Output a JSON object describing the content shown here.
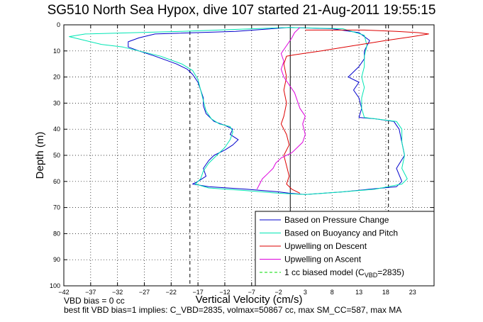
{
  "chart_data": {
    "type": "line",
    "title": "SG510 North Sea Hypox, dive 107 started 21-Aug-2011 19:55:15",
    "xlabel": "Vertical Velocity (cm/s)",
    "ylabel": "Depth (m)",
    "xlim": [
      -42,
      27
    ],
    "ylim": [
      100,
      0
    ],
    "y_reversed": true,
    "grid": true,
    "x_ticks": [
      -42,
      -37,
      -32,
      -27,
      -22,
      -17,
      -12,
      -7,
      -2,
      3,
      8,
      13,
      18,
      23
    ],
    "y_ticks": [
      0,
      10,
      20,
      30,
      40,
      50,
      60,
      70,
      80,
      90,
      100
    ],
    "vertical_lines": [
      {
        "x": -18.5,
        "style": "dashed",
        "color": "#000000"
      },
      {
        "x": 0.2,
        "style": "solid",
        "color": "#000000"
      },
      {
        "x": 18.5,
        "style": "dashed",
        "color": "#000000"
      }
    ],
    "legend_position": "bottom-right",
    "series": [
      {
        "name": "Based on Pressure Change",
        "color": "#0000cc",
        "style": "solid",
        "points": [
          [
            0,
            1
          ],
          [
            -10,
            2.5
          ],
          [
            -25,
            3.5
          ],
          [
            -28,
            5
          ],
          [
            -30,
            6.5
          ],
          [
            -30,
            8.5
          ],
          [
            -28,
            10
          ],
          [
            -25,
            12
          ],
          [
            -21,
            15
          ],
          [
            -19,
            17
          ],
          [
            -18,
            19
          ],
          [
            -17,
            22
          ],
          [
            -16.5,
            25
          ],
          [
            -16,
            28
          ],
          [
            -16,
            31
          ],
          [
            -15.5,
            34
          ],
          [
            -14,
            37
          ],
          [
            -12,
            38.5
          ],
          [
            -10.5,
            40
          ],
          [
            -11,
            42
          ],
          [
            -9.5,
            44
          ],
          [
            -10.5,
            46
          ],
          [
            -12,
            48
          ],
          [
            -14,
            50
          ],
          [
            -15,
            52
          ],
          [
            -16,
            55
          ],
          [
            -15.5,
            58
          ],
          [
            -17,
            60
          ],
          [
            -18,
            61
          ],
          [
            -15,
            62
          ],
          [
            -8,
            63
          ],
          [
            -2,
            64
          ],
          [
            0,
            64.5
          ],
          [
            3,
            65
          ],
          [
            10,
            64
          ],
          [
            15,
            63
          ],
          [
            20,
            62
          ],
          [
            21,
            60
          ],
          [
            20,
            55
          ],
          [
            21.5,
            50
          ],
          [
            21,
            45
          ],
          [
            20.5,
            40
          ],
          [
            19.5,
            37
          ],
          [
            16,
            36
          ],
          [
            13,
            35.5
          ],
          [
            13.5,
            32
          ],
          [
            13,
            28
          ],
          [
            12,
            25
          ],
          [
            13,
            22
          ],
          [
            11,
            20
          ],
          [
            13,
            16
          ],
          [
            14,
            13
          ],
          [
            14,
            10
          ],
          [
            15,
            6
          ],
          [
            13,
            3
          ],
          [
            8,
            1.5
          ],
          [
            0,
            1
          ]
        ]
      },
      {
        "name": "Based on Buoyancy and Pitch",
        "color": "#00e6b4",
        "style": "solid",
        "points": [
          [
            0,
            1
          ],
          [
            -20,
            2.5
          ],
          [
            -38,
            3.5
          ],
          [
            -41,
            4.5
          ],
          [
            -38,
            6
          ],
          [
            -35,
            7.5
          ],
          [
            -31,
            8.5
          ],
          [
            -28,
            10
          ],
          [
            -24,
            12
          ],
          [
            -20,
            15
          ],
          [
            -18,
            17.5
          ],
          [
            -17,
            21
          ],
          [
            -16.5,
            25
          ],
          [
            -16,
            29
          ],
          [
            -15.5,
            33
          ],
          [
            -14.5,
            36
          ],
          [
            -13,
            38
          ],
          [
            -11,
            39
          ],
          [
            -10.5,
            41
          ],
          [
            -11,
            44
          ],
          [
            -12,
            47
          ],
          [
            -13.5,
            50
          ],
          [
            -15,
            53
          ],
          [
            -16,
            56
          ],
          [
            -16.5,
            59
          ],
          [
            -17.5,
            61
          ],
          [
            -15,
            62.5
          ],
          [
            -8,
            63.5
          ],
          [
            -2,
            64.5
          ],
          [
            3,
            65
          ],
          [
            10,
            64
          ],
          [
            16,
            63
          ],
          [
            21,
            61
          ],
          [
            22,
            59
          ],
          [
            21,
            55
          ],
          [
            21.5,
            50
          ],
          [
            21,
            45
          ],
          [
            21,
            40
          ],
          [
            20,
            37
          ],
          [
            16,
            36
          ],
          [
            14,
            35.5
          ],
          [
            13.5,
            32
          ],
          [
            13.5,
            28
          ],
          [
            14,
            24
          ],
          [
            13.5,
            20
          ],
          [
            14,
            16
          ],
          [
            14,
            12
          ],
          [
            14.5,
            8
          ],
          [
            14,
            4
          ],
          [
            10,
            1.5
          ],
          [
            0,
            1
          ]
        ]
      },
      {
        "name": "Upwelling on Descent",
        "color": "#dd0000",
        "style": "solid",
        "points": [
          [
            3,
            2
          ],
          [
            14,
            2
          ],
          [
            20,
            2.5
          ],
          [
            24,
            3
          ],
          [
            26,
            3.5
          ],
          [
            23,
            4.5
          ],
          [
            18,
            6
          ],
          [
            12,
            8
          ],
          [
            6,
            10
          ],
          [
            1,
            11.5
          ],
          [
            -0.5,
            12
          ],
          [
            -1,
            15
          ],
          [
            -0.5,
            20
          ],
          [
            -1,
            25
          ],
          [
            -0.5,
            30
          ],
          [
            -1,
            35
          ],
          [
            -1.5,
            38
          ],
          [
            -0.5,
            42
          ],
          [
            0,
            46
          ],
          [
            -1,
            50
          ],
          [
            -0.5,
            54
          ],
          [
            0,
            58
          ],
          [
            -0.5,
            61
          ],
          [
            0.5,
            63
          ],
          [
            2,
            64.5
          ]
        ]
      },
      {
        "name": "Upwelling on Ascent",
        "color": "#dd00dd",
        "style": "solid",
        "points": [
          [
            -6,
            63
          ],
          [
            -5.5,
            61
          ],
          [
            -5,
            59
          ],
          [
            -4,
            57
          ],
          [
            -3,
            55
          ],
          [
            -2.5,
            53
          ],
          [
            -1.5,
            51
          ],
          [
            0.5,
            49
          ],
          [
            1.5,
            47
          ],
          [
            2.5,
            45
          ],
          [
            3,
            42
          ],
          [
            2.5,
            38
          ],
          [
            3,
            35
          ],
          [
            2,
            32
          ],
          [
            1.5,
            29
          ],
          [
            1,
            26
          ],
          [
            0,
            23
          ],
          [
            -1,
            20
          ],
          [
            -1.5,
            17
          ],
          [
            -1,
            14
          ],
          [
            -1.5,
            11
          ],
          [
            -0.5,
            8
          ],
          [
            0.5,
            5
          ],
          [
            1,
            3
          ],
          [
            2,
            1
          ]
        ]
      },
      {
        "name": "1 cc biased model (C_VBD=2835)",
        "color": "#00dd00",
        "style": "dashed",
        "points": []
      }
    ],
    "annotations": [
      "VBD bias = 0 cc",
      "best fit VBD bias=1 implies: C_VBD=2835, volmax=50867 cc, max SM_CC=587, max MA"
    ]
  },
  "legend": {
    "items": [
      {
        "label": "Based on Pressure Change",
        "color": "#0000cc"
      },
      {
        "label": "Based on Buoyancy and Pitch",
        "color": "#00e6b4"
      },
      {
        "label": "Upwelling on Descent",
        "color": "#dd0000"
      },
      {
        "label": "Upwelling on Ascent",
        "color": "#dd00dd"
      },
      {
        "label_main": "1 cc biased model (C",
        "label_sub": "VBD",
        "label_tail": "=2835)",
        "color": "#00dd00"
      }
    ]
  }
}
